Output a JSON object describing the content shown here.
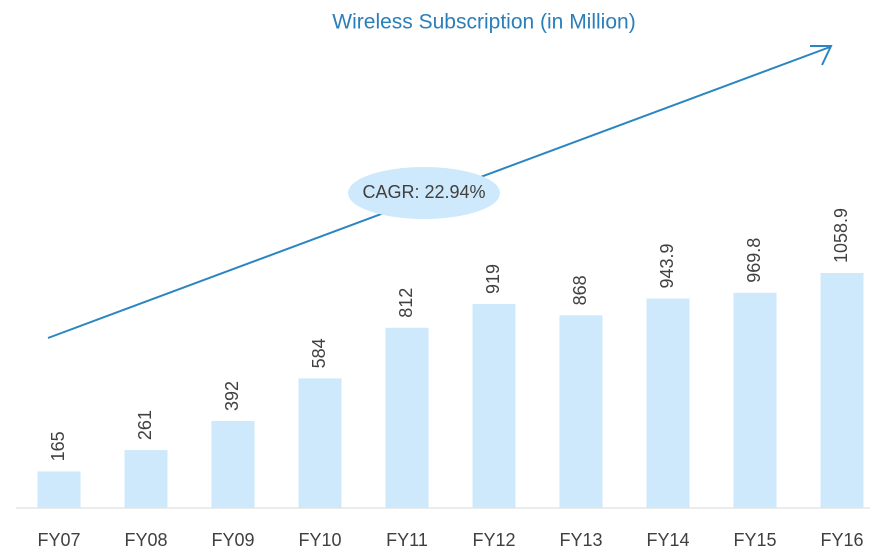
{
  "chart_data": {
    "type": "bar",
    "title": "Wireless Subscription (in Million)",
    "categories": [
      "FY07",
      "FY08",
      "FY09",
      "FY10",
      "FY11",
      "FY12",
      "FY13",
      "FY14",
      "FY15",
      "FY16"
    ],
    "values": [
      165,
      261,
      392,
      584,
      812,
      919,
      868,
      943.9,
      969.8,
      1058.9
    ],
    "color": "#cde9fb",
    "annotation": "CAGR: 22.94%"
  }
}
